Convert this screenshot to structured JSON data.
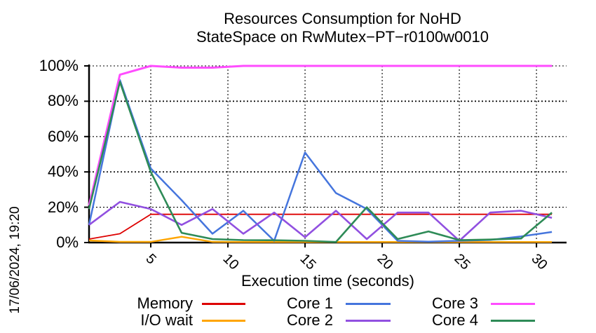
{
  "timestamp": "17/06/2024, 19:20",
  "chart_data": {
    "type": "line",
    "title_line1": "Resources Consumption for NoHD",
    "title_line2": "StateSpace on RwMutex−PT−r0100w0010",
    "xlabel": "Execution time (seconds)",
    "ylabel": "",
    "xlim": [
      1,
      31.95
    ],
    "ylim": [
      0,
      100
    ],
    "x_ticks": [
      5,
      10,
      15,
      20,
      25,
      30
    ],
    "y_ticks": [
      0,
      20,
      40,
      60,
      80,
      100
    ],
    "y_tick_suffix": "%",
    "grid": true,
    "legend_position": "bottom",
    "x": [
      1,
      3,
      5,
      7,
      9,
      11,
      13,
      15,
      17,
      19,
      21,
      23,
      25,
      27,
      29,
      31
    ],
    "series": [
      {
        "name": "Memory",
        "color": "#dd0000",
        "values": [
          2,
          5,
          16,
          16,
          16,
          16,
          16,
          16,
          16,
          16,
          16,
          16,
          16,
          16,
          16,
          16
        ]
      },
      {
        "name": "I/O wait",
        "color": "#ffa500",
        "values": [
          1.2,
          0.4,
          0.4,
          3.3,
          0.4,
          0.3,
          0.3,
          0.3,
          0.3,
          0.3,
          0.3,
          0.3,
          0.3,
          0.3,
          0.3,
          0.3
        ]
      },
      {
        "name": "Core 1",
        "color": "#4575dd",
        "values": [
          10,
          92,
          42,
          24,
          5,
          18,
          1,
          51,
          28,
          19,
          1,
          0.5,
          1,
          1.5,
          3.5,
          6
        ]
      },
      {
        "name": "Core 2",
        "color": "#9150e0",
        "values": [
          10,
          23,
          19,
          10,
          19,
          5,
          17,
          3,
          18,
          2,
          17,
          17,
          1,
          17,
          18,
          14
        ]
      },
      {
        "name": "Core 3",
        "color": "#ff4dff",
        "values": [
          21,
          95,
          100,
          99,
          99,
          100,
          100,
          100,
          100,
          100,
          100,
          100,
          100,
          100,
          100,
          100
        ]
      },
      {
        "name": "Core 4",
        "color": "#2e8b57",
        "values": [
          19,
          91,
          40,
          5.5,
          2,
          1.4,
          1.3,
          1,
          0.3,
          20,
          2,
          6.3,
          1.4,
          1.7,
          2.3,
          17
        ]
      }
    ],
    "legend_rows": [
      [
        "Memory",
        "Core 1",
        "Core 3"
      ],
      [
        "I/O wait",
        "Core 2",
        "Core 4"
      ]
    ]
  }
}
